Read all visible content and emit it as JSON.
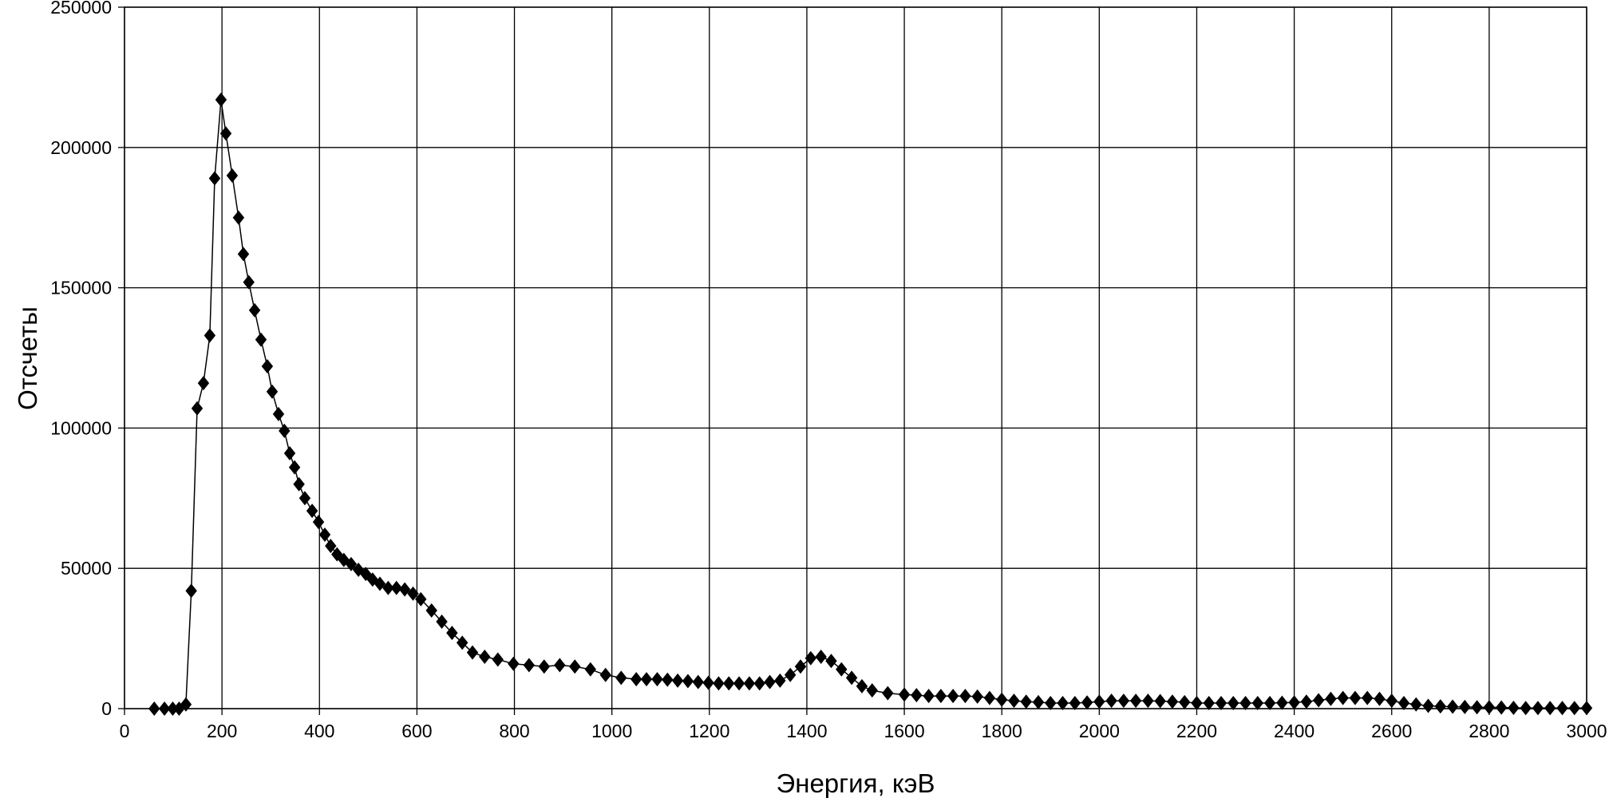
{
  "chart_data": {
    "type": "scatter-line",
    "xlabel": "Энергия, кэВ",
    "ylabel": "Отсчеты",
    "x": [
      61,
      82,
      99,
      112,
      126,
      137,
      149,
      162,
      175,
      185,
      198,
      208,
      221,
      234,
      244,
      255,
      267,
      280,
      293,
      303,
      316,
      328,
      339,
      349,
      358,
      370,
      385,
      398,
      411,
      423,
      436,
      450,
      465,
      480,
      495,
      509,
      524,
      541,
      558,
      575,
      592,
      608,
      630,
      651,
      672,
      693,
      714,
      739,
      766,
      798,
      830,
      861,
      893,
      924,
      956,
      987,
      1019,
      1050,
      1071,
      1093,
      1114,
      1135,
      1156,
      1177,
      1198,
      1219,
      1240,
      1261,
      1282,
      1303,
      1324,
      1345,
      1366,
      1387,
      1408,
      1429,
      1450,
      1471,
      1492,
      1513,
      1534,
      1566,
      1600,
      1625,
      1650,
      1675,
      1700,
      1725,
      1750,
      1775,
      1800,
      1825,
      1850,
      1875,
      1900,
      1925,
      1950,
      1975,
      2000,
      2025,
      2050,
      2075,
      2100,
      2125,
      2150,
      2175,
      2200,
      2225,
      2250,
      2275,
      2300,
      2325,
      2350,
      2375,
      2400,
      2425,
      2450,
      2475,
      2500,
      2525,
      2550,
      2575,
      2600,
      2625,
      2650,
      2675,
      2700,
      2725,
      2750,
      2775,
      2800,
      2825,
      2850,
      2875,
      2900,
      2925,
      2950,
      2975,
      3000
    ],
    "values": [
      0,
      0,
      0,
      0,
      1500,
      42000,
      107000,
      116000,
      133000,
      189000,
      217000,
      205000,
      190000,
      175000,
      162000,
      152000,
      142000,
      131500,
      122000,
      113000,
      105000,
      99000,
      91000,
      86000,
      80000,
      75000,
      70500,
      66500,
      62000,
      58000,
      55000,
      53000,
      51500,
      49500,
      48000,
      46000,
      44500,
      43000,
      43000,
      42500,
      41000,
      39000,
      35000,
      31000,
      27000,
      23500,
      20000,
      18500,
      17500,
      16000,
      15500,
      15000,
      15500,
      15000,
      14000,
      12000,
      11000,
      10500,
      10500,
      10500,
      10300,
      10000,
      9800,
      9500,
      9200,
      9000,
      9000,
      9000,
      9000,
      9000,
      9500,
      10000,
      12000,
      15000,
      18000,
      18500,
      17000,
      14000,
      11000,
      8000,
      6500,
      5500,
      5000,
      4800,
      4500,
      4500,
      4500,
      4500,
      4300,
      3800,
      3200,
      2800,
      2500,
      2300,
      2000,
      2000,
      2000,
      2200,
      2500,
      2800,
      2800,
      2800,
      2800,
      2700,
      2500,
      2300,
      2000,
      2000,
      2000,
      2000,
      2000,
      2000,
      2000,
      2100,
      2200,
      2500,
      3000,
      3500,
      3800,
      3800,
      3800,
      3500,
      2800,
      2000,
      1500,
      1000,
      800,
      700,
      600,
      500,
      500,
      400,
      300,
      200,
      200,
      200,
      200,
      200,
      200
    ],
    "color": "#000000",
    "xlim": [
      0,
      3000
    ],
    "xticks": [
      0,
      200,
      400,
      600,
      800,
      1000,
      1200,
      1400,
      1600,
      1800,
      2000,
      2200,
      2400,
      2600,
      2800,
      3000
    ],
    "ylim": [
      0,
      250000
    ],
    "yticks": [
      0,
      50000,
      100000,
      150000,
      200000,
      250000
    ],
    "grid": true
  }
}
